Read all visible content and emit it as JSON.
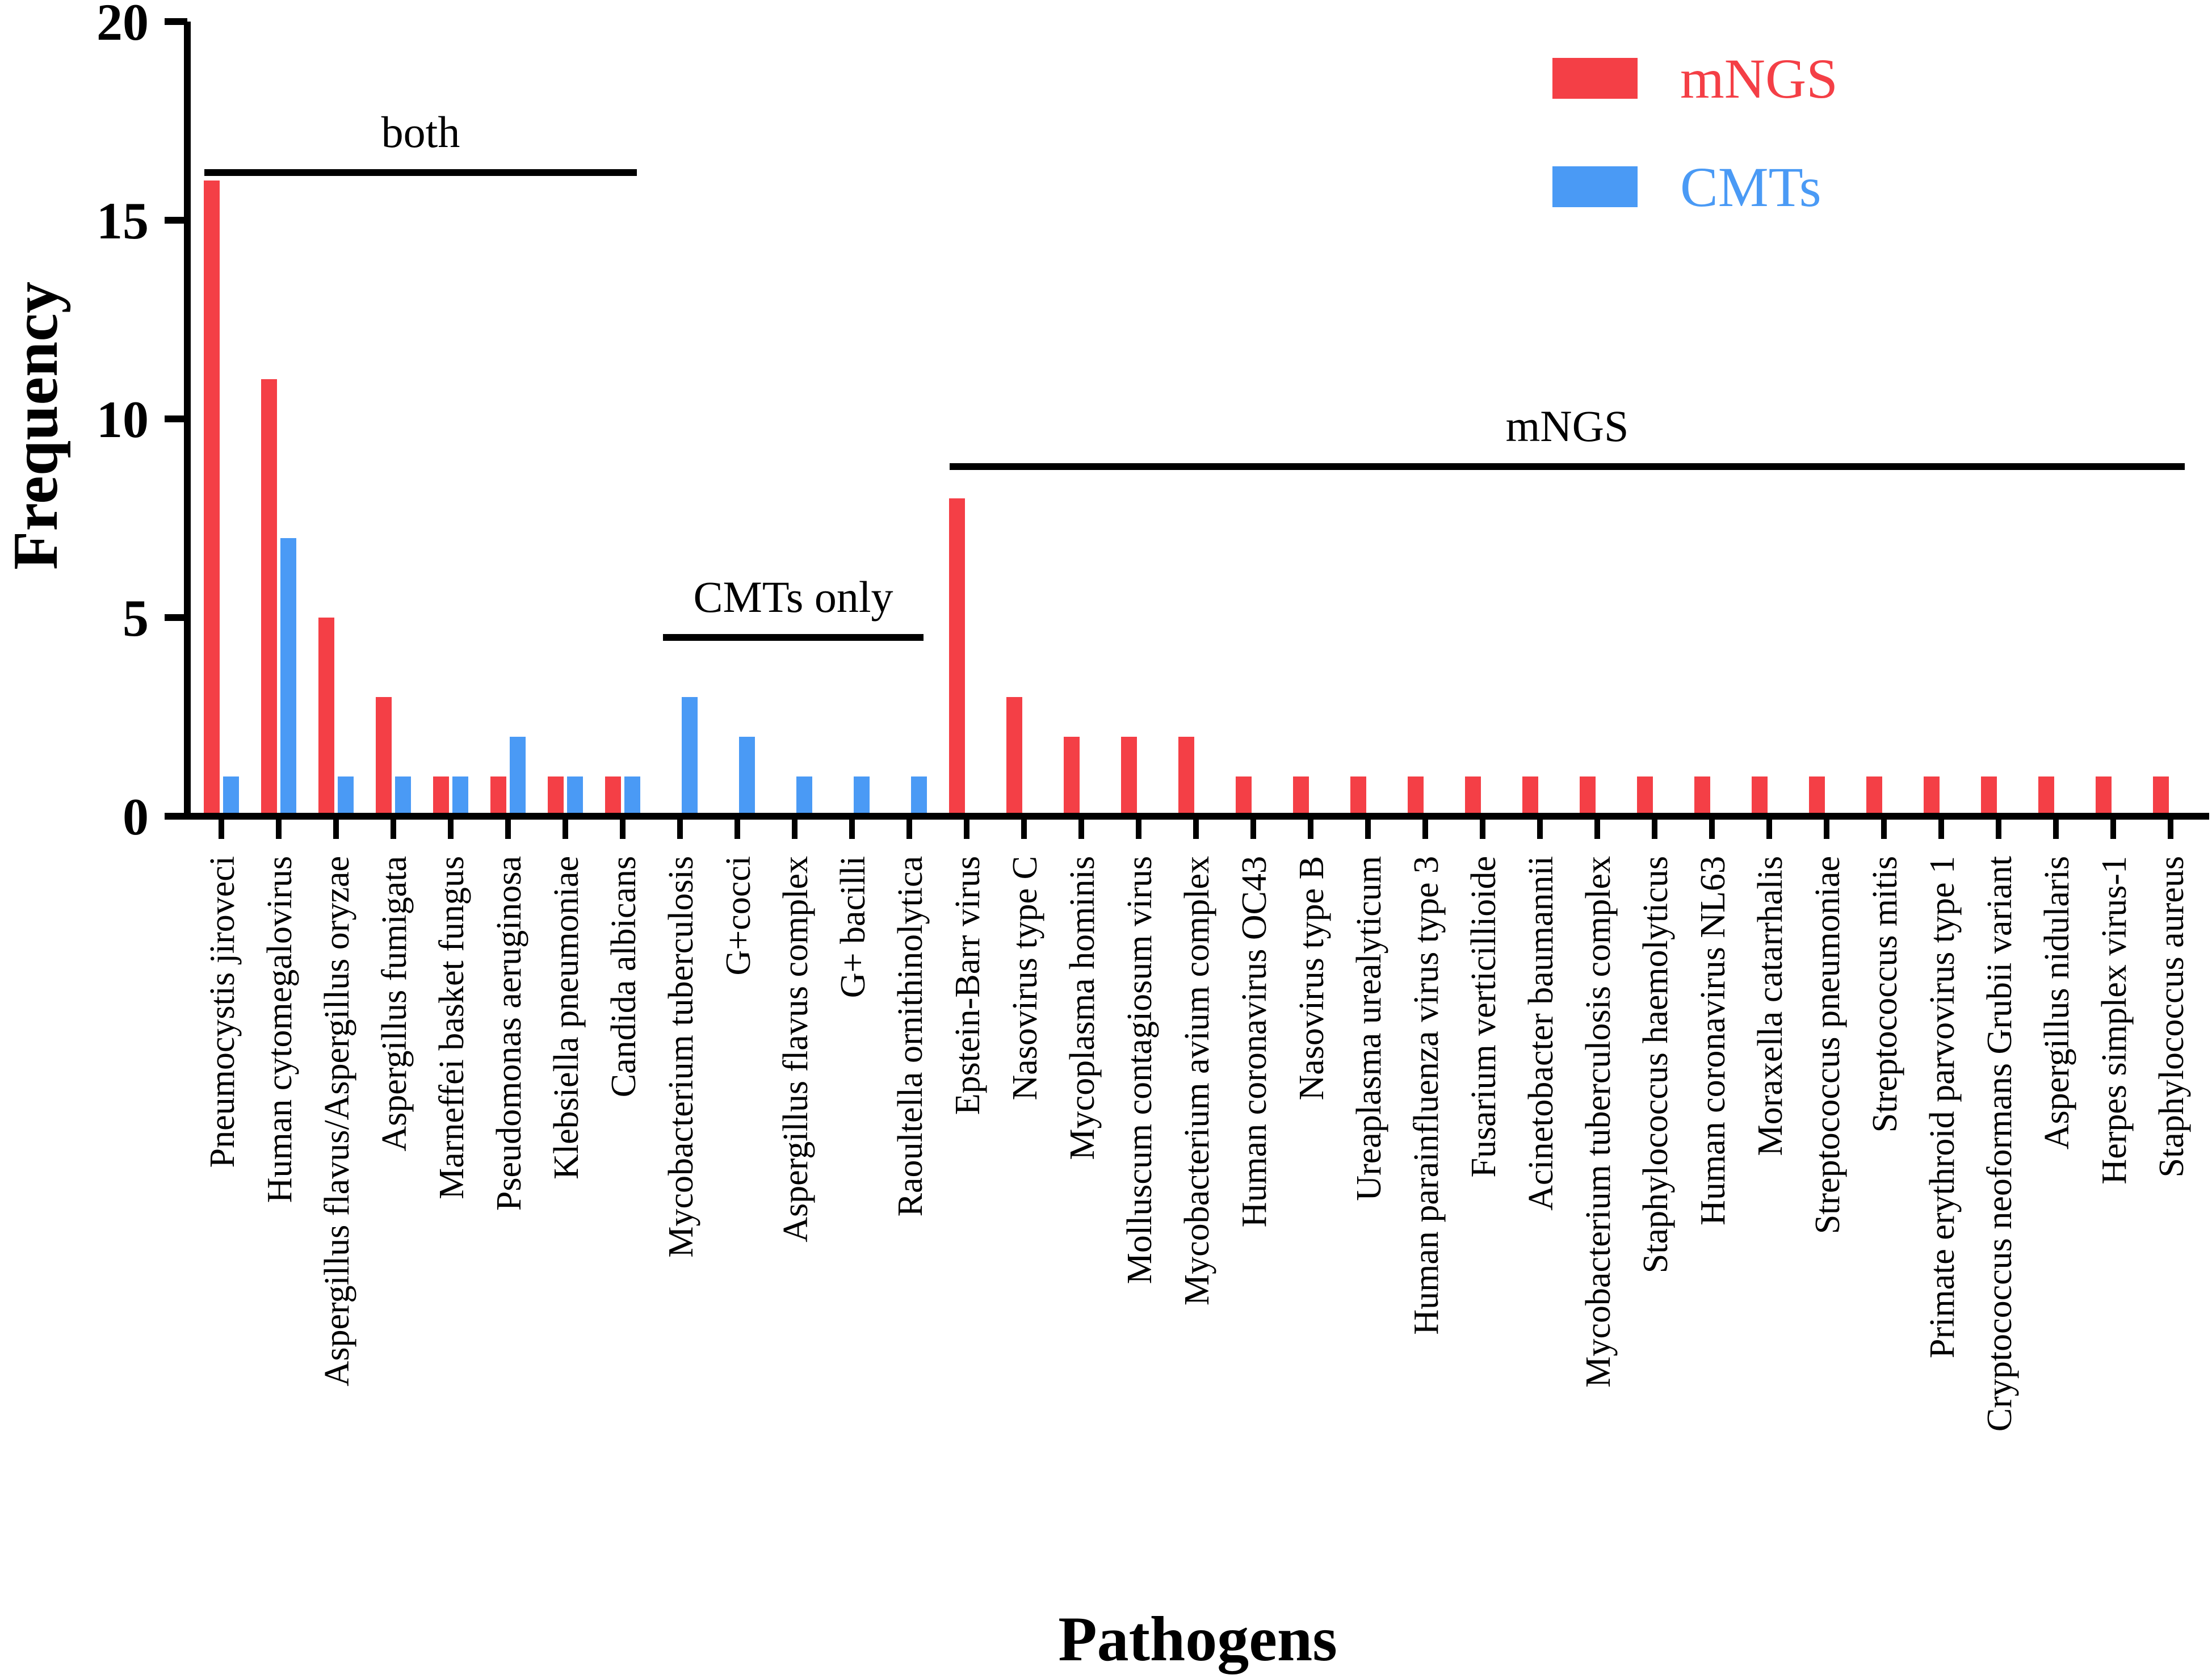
{
  "colors": {
    "mngs": "#f43f46",
    "cmts": "#4a9af5",
    "axis": "#000000"
  },
  "chart_data": {
    "type": "bar",
    "title": "",
    "xlabel": "Pathogens",
    "ylabel": "Frequency",
    "ylim": [
      0,
      20
    ],
    "yticks": [
      "0",
      "5",
      "10",
      "15",
      "20"
    ],
    "legend_position": "top-right",
    "categories": [
      "Pneumocystis jiroveci",
      "Human cytomegalovirus",
      "Aspergillus flavus/Aspergillus oryzae",
      "Aspergillus fumigata",
      "Marneffei basket fungus",
      "Pseudomonas aeruginosa",
      "Klebsiella pneumoniae",
      "Candida albicans",
      "Mycobacterium tuberculosis",
      "G+cocci",
      "Aspergillus flavus complex",
      "G+ bacilli",
      "Raoultella ornithinolytica",
      "Epstein-Barr virus",
      "Nasovirus type C",
      "Mycoplasma hominis",
      "Molluscum contagiosum virus",
      "Mycobacterium avium complex",
      "Human coronavirus OC43",
      "Nasovirus type B",
      "Ureaplasma urealyticum",
      "Human parainfluenza virus type 3",
      "Fusarium verticillioide",
      "Acinetobacter baumannii",
      "Mycobacterium tuberculosis complex",
      "Staphylococcus haemolyticus",
      "Human coronavirus NL63",
      "Moraxella catarrhalis",
      "Streptococcus pneumoniae",
      "Streptococcus mitis",
      "Primate erythroid parvovirus type 1",
      "Cryptococcus neoformans Grubii variant",
      "Aspergillus nidularis",
      "Herpes simplex virus-1",
      "Staphylococcus aureus"
    ],
    "series": [
      {
        "name": "mNGS",
        "values": [
          16,
          11,
          5,
          3,
          1,
          1,
          1,
          1,
          0,
          0,
          0,
          0,
          0,
          8,
          3,
          2,
          2,
          2,
          1,
          1,
          1,
          1,
          1,
          1,
          1,
          1,
          1,
          1,
          1,
          1,
          1,
          1,
          1,
          1,
          1
        ]
      },
      {
        "name": "CMTs",
        "values": [
          1,
          7,
          1,
          1,
          1,
          2,
          1,
          1,
          3,
          2,
          1,
          1,
          1,
          0,
          0,
          0,
          0,
          0,
          0,
          0,
          0,
          0,
          0,
          0,
          0,
          0,
          0,
          0,
          0,
          0,
          0,
          0,
          0,
          0,
          0
        ]
      }
    ],
    "groups": [
      {
        "label": "both",
        "start": 0,
        "end": 7,
        "level": 16.2
      },
      {
        "label": "CMTs only",
        "start": 8,
        "end": 12,
        "level": 4.5
      },
      {
        "label": "mNGS",
        "start": 13,
        "end": 34,
        "level": 8.8
      }
    ]
  }
}
